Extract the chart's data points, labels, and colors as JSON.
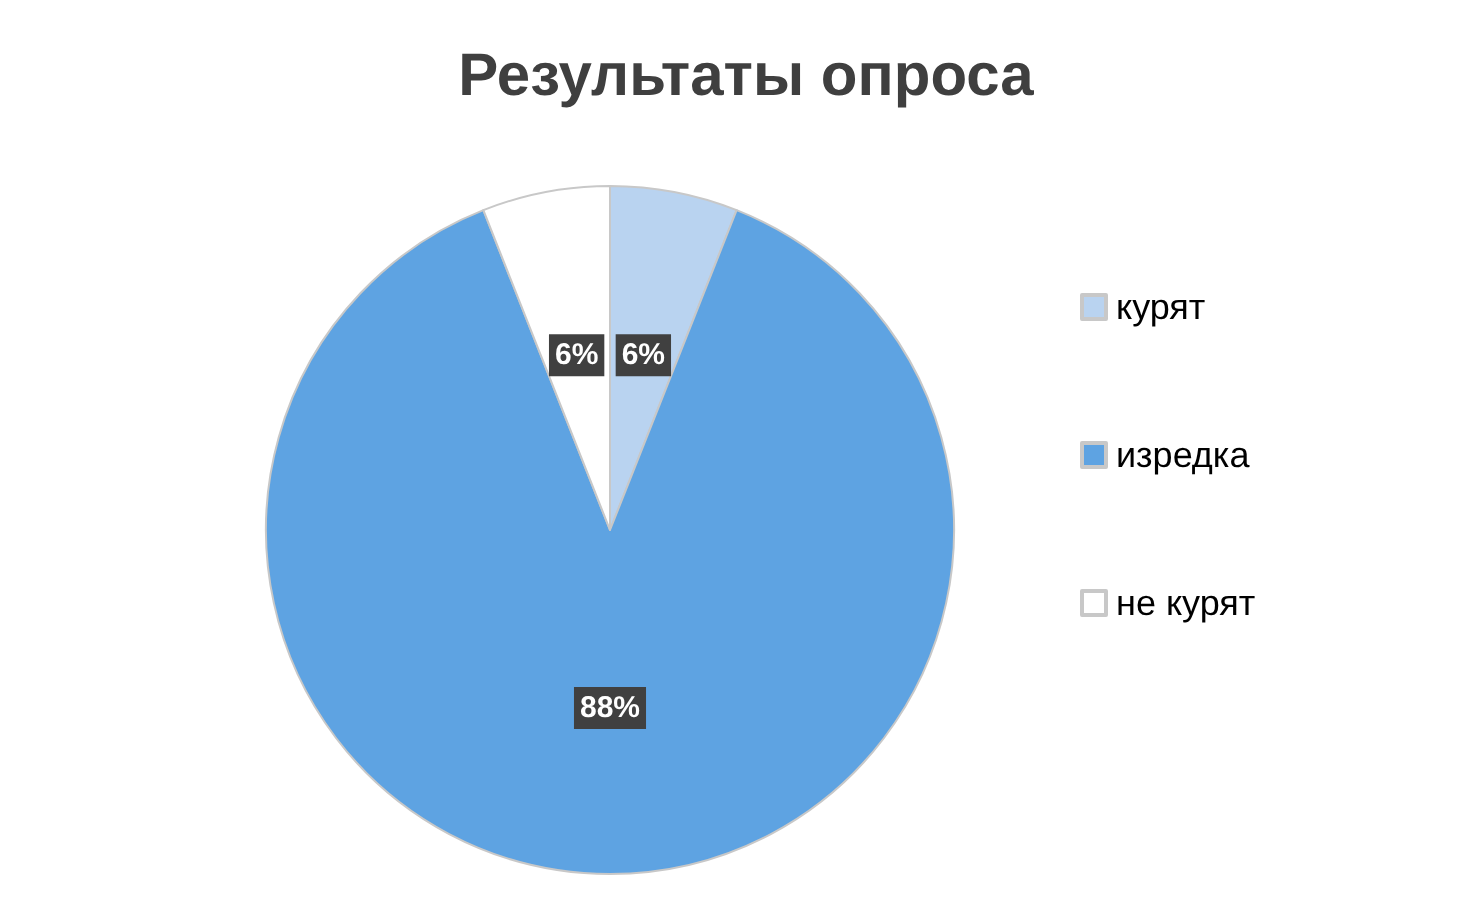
{
  "chart_data": {
    "type": "pie",
    "title": "Результаты опроса",
    "categories": [
      "курят",
      "изредка",
      "не курят"
    ],
    "values": [
      6,
      88,
      6
    ],
    "colors": [
      "#b9d3f0",
      "#5ea3e2",
      "#ffffff"
    ],
    "value_labels": [
      "6%",
      "88%",
      "6%"
    ],
    "legend": "right"
  }
}
